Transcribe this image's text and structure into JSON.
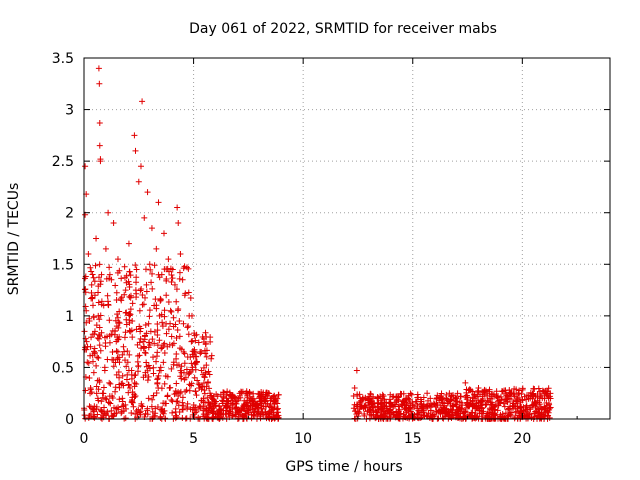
{
  "chart_data": {
    "type": "scatter",
    "title": "Day 061 of 2022, SRMTID for receiver mabs",
    "xlabel": "GPS time / hours",
    "ylabel": "SRMTID / TECUs",
    "xlim": [
      0,
      24
    ],
    "ylim": [
      0,
      3.5
    ],
    "x_ticks": [
      0,
      5,
      10,
      15,
      20
    ],
    "x_tick_labels": [
      "0",
      "5",
      "10",
      "15",
      "20"
    ],
    "y_ticks": [
      0,
      0.5,
      1,
      1.5,
      2,
      2.5,
      3,
      3.5
    ],
    "y_tick_labels": [
      "0",
      "0.5",
      "1",
      "1.5",
      "2",
      "2.5",
      "3",
      "3.5"
    ],
    "grid": true,
    "marker": "+",
    "marker_color": "#e00000",
    "series": [
      {
        "name": "SRMTID",
        "points": [
          [
            0.05,
            2.45
          ],
          [
            0.05,
            1.98
          ],
          [
            0.1,
            2.18
          ],
          [
            0.1,
            1.05
          ],
          [
            0.12,
            0.75
          ],
          [
            0.15,
            0.55
          ],
          [
            0.2,
            1.6
          ],
          [
            0.25,
            0.95
          ],
          [
            0.3,
            0.3
          ],
          [
            0.3,
            0.7
          ],
          [
            0.35,
            1.3
          ],
          [
            0.4,
            0.1
          ],
          [
            0.45,
            0.45
          ],
          [
            0.5,
            1.2
          ],
          [
            0.5,
            0.85
          ],
          [
            0.55,
            1.75
          ],
          [
            0.6,
            0.6
          ],
          [
            0.65,
            1.0
          ],
          [
            0.68,
            3.4
          ],
          [
            0.7,
            3.25
          ],
          [
            0.72,
            2.87
          ],
          [
            0.72,
            2.65
          ],
          [
            0.75,
            2.52
          ],
          [
            0.75,
            2.5
          ],
          [
            0.8,
            1.4
          ],
          [
            0.85,
            0.25
          ],
          [
            0.9,
            1.1
          ],
          [
            0.95,
            0.5
          ],
          [
            1.0,
            1.65
          ],
          [
            1.05,
            0.8
          ],
          [
            1.1,
            2.0
          ],
          [
            1.15,
            0.35
          ],
          [
            1.2,
            0.15
          ],
          [
            1.25,
            1.35
          ],
          [
            1.3,
            0.65
          ],
          [
            1.35,
            1.9
          ],
          [
            1.4,
            0.05
          ],
          [
            1.5,
            0.9
          ],
          [
            1.55,
            1.55
          ],
          [
            1.6,
            0.4
          ],
          [
            1.7,
            1.15
          ],
          [
            1.75,
            0.2
          ],
          [
            1.8,
            0.7
          ],
          [
            1.9,
            1.25
          ],
          [
            2.0,
            0.55
          ],
          [
            2.05,
            1.7
          ],
          [
            2.1,
            0.3
          ],
          [
            2.2,
            0.95
          ],
          [
            2.3,
            2.75
          ],
          [
            2.35,
            2.6
          ],
          [
            2.4,
            1.45
          ],
          [
            2.45,
            0.05
          ],
          [
            2.5,
            2.3
          ],
          [
            2.55,
            1.05
          ],
          [
            2.6,
            2.45
          ],
          [
            2.65,
            3.08
          ],
          [
            2.7,
            0.75
          ],
          [
            2.75,
            1.95
          ],
          [
            2.8,
            0.45
          ],
          [
            2.85,
            1.3
          ],
          [
            2.9,
            2.2
          ],
          [
            2.95,
            0.2
          ],
          [
            3.0,
            1.5
          ],
          [
            3.05,
            0.85
          ],
          [
            3.1,
            1.85
          ],
          [
            3.15,
            0.6
          ],
          [
            3.2,
            1.1
          ],
          [
            3.25,
            0.1
          ],
          [
            3.3,
            1.65
          ],
          [
            3.35,
            0.35
          ],
          [
            3.4,
            2.1
          ],
          [
            3.45,
            1.0
          ],
          [
            3.5,
            0.5
          ],
          [
            3.55,
            1.4
          ],
          [
            3.6,
            0.9
          ],
          [
            3.65,
            1.8
          ],
          [
            3.7,
            0.15
          ],
          [
            3.75,
            1.2
          ],
          [
            3.8,
            0.7
          ],
          [
            3.85,
            1.55
          ],
          [
            3.9,
            0.3
          ],
          [
            3.95,
            1.05
          ],
          [
            4.0,
            0.8
          ],
          [
            4.05,
            1.45
          ],
          [
            4.1,
            0.55
          ],
          [
            4.15,
            1.3
          ],
          [
            4.2,
            0.25
          ],
          [
            4.25,
            2.05
          ],
          [
            4.3,
            1.9
          ],
          [
            4.35,
            0.95
          ],
          [
            4.4,
            1.6
          ],
          [
            4.45,
            0.45
          ],
          [
            4.5,
            1.35
          ],
          [
            4.55,
            0.65
          ],
          [
            4.6,
            1.2
          ],
          [
            4.65,
            0.4
          ],
          [
            4.7,
            1.47
          ],
          [
            4.75,
            0.9
          ],
          [
            4.8,
            1.0
          ],
          [
            4.85,
            0.6
          ],
          [
            4.9,
            0.75
          ],
          [
            4.95,
            0.5
          ],
          [
            5.05,
            0.4
          ],
          [
            5.15,
            0.55
          ],
          [
            5.25,
            0.3
          ],
          [
            5.35,
            0.65
          ],
          [
            5.45,
            0.2
          ],
          [
            5.55,
            0.45
          ],
          [
            5.65,
            0.35
          ],
          [
            5.75,
            0.25
          ],
          [
            5.85,
            0.2
          ],
          [
            5.95,
            0.15
          ],
          [
            6.1,
            0.22
          ],
          [
            6.3,
            0.18
          ],
          [
            6.5,
            0.12
          ],
          [
            6.7,
            0.15
          ],
          [
            6.9,
            0.1
          ],
          [
            7.1,
            0.08
          ],
          [
            7.3,
            0.12
          ],
          [
            7.5,
            0.06
          ],
          [
            7.7,
            0.09
          ],
          [
            7.9,
            0.14
          ],
          [
            8.1,
            0.18
          ],
          [
            8.3,
            0.22
          ],
          [
            8.5,
            0.2
          ],
          [
            8.7,
            0.15
          ],
          [
            8.85,
            0.1
          ],
          [
            12.35,
            0.3
          ],
          [
            12.45,
            0.47
          ],
          [
            12.6,
            0.2
          ],
          [
            12.8,
            0.12
          ],
          [
            13.0,
            0.18
          ],
          [
            13.2,
            0.08
          ],
          [
            13.4,
            0.15
          ],
          [
            13.6,
            0.1
          ],
          [
            13.8,
            0.12
          ],
          [
            14.0,
            0.06
          ],
          [
            14.2,
            0.14
          ],
          [
            14.4,
            0.09
          ],
          [
            14.6,
            0.16
          ],
          [
            14.8,
            0.11
          ],
          [
            15.0,
            0.13
          ],
          [
            15.2,
            0.1
          ],
          [
            15.4,
            0.17
          ],
          [
            15.6,
            0.12
          ],
          [
            15.8,
            0.2
          ],
          [
            16.0,
            0.14
          ],
          [
            16.2,
            0.18
          ],
          [
            16.4,
            0.11
          ],
          [
            16.6,
            0.15
          ],
          [
            16.8,
            0.09
          ],
          [
            17.0,
            0.12
          ],
          [
            17.2,
            0.22
          ],
          [
            17.4,
            0.35
          ],
          [
            17.6,
            0.28
          ],
          [
            17.8,
            0.2
          ],
          [
            18.0,
            0.3
          ],
          [
            18.2,
            0.18
          ],
          [
            18.4,
            0.25
          ],
          [
            18.6,
            0.14
          ],
          [
            18.8,
            0.22
          ],
          [
            19.0,
            0.16
          ],
          [
            19.2,
            0.12
          ],
          [
            19.4,
            0.2
          ],
          [
            19.6,
            0.15
          ],
          [
            19.8,
            0.1
          ],
          [
            20.0,
            0.18
          ],
          [
            20.2,
            0.13
          ],
          [
            20.4,
            0.22
          ],
          [
            20.6,
            0.16
          ],
          [
            20.8,
            0.2
          ],
          [
            21.0,
            0.12
          ],
          [
            21.2,
            0.06
          ]
        ]
      }
    ],
    "generated_bands": [
      {
        "x0": 0.0,
        "x1": 4.95,
        "y0": 0.0,
        "y1": 1.5,
        "count": 520,
        "seed": 11
      },
      {
        "x0": 4.95,
        "x1": 5.85,
        "y0": 0.0,
        "y1": 0.85,
        "count": 110,
        "seed": 23
      },
      {
        "x0": 5.85,
        "x1": 8.9,
        "y0": 0.0,
        "y1": 0.27,
        "count": 300,
        "seed": 37
      },
      {
        "x0": 12.3,
        "x1": 17.2,
        "y0": 0.0,
        "y1": 0.25,
        "count": 420,
        "seed": 41
      },
      {
        "x0": 17.2,
        "x1": 21.3,
        "y0": 0.0,
        "y1": 0.3,
        "count": 400,
        "seed": 53
      }
    ]
  }
}
